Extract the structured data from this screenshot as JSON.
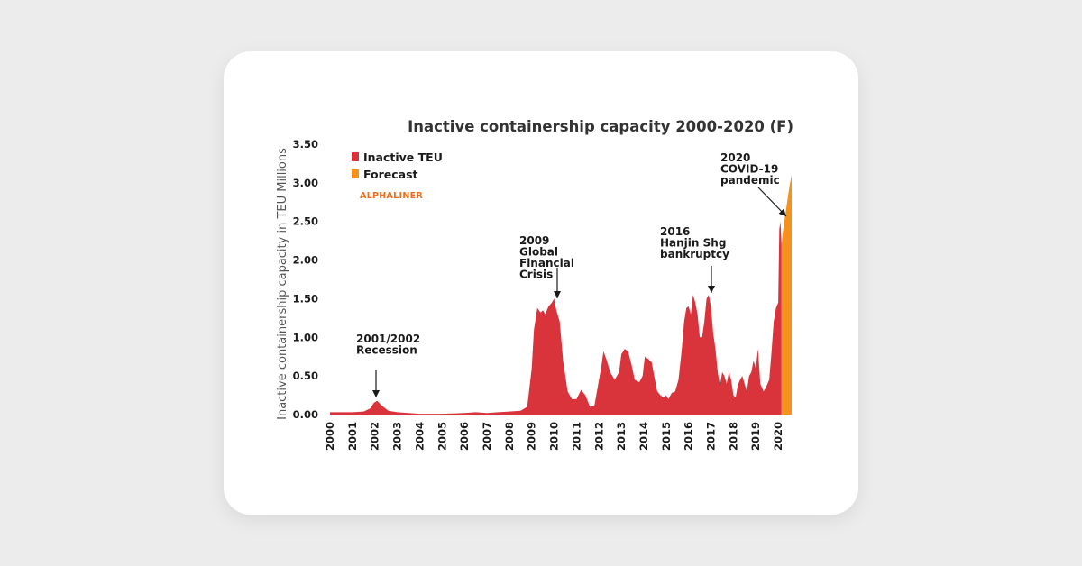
{
  "chart_data": {
    "type": "area",
    "title": "Inactive containership capacity 2000-2020 (F)",
    "xlabel": "",
    "ylabel": "Inactive containership capacity in TEU Millions",
    "xlim": [
      2000,
      2020.6
    ],
    "ylim": [
      0,
      3.5
    ],
    "yticks": [
      "0.00",
      "0.50",
      "1.00",
      "1.50",
      "2.00",
      "2.50",
      "3.00",
      "3.50"
    ],
    "xticks": [
      "2000",
      "2001",
      "2002",
      "2003",
      "2004",
      "2005",
      "2006",
      "2007",
      "2008",
      "2009",
      "2010",
      "2011",
      "2012",
      "2013",
      "2014",
      "2015",
      "2016",
      "2017",
      "2018",
      "2019",
      "2020"
    ],
    "grid": false,
    "legend_position": "top-left",
    "source": "ALPHALINER",
    "colors": {
      "Inactive TEU": "#d9343c",
      "Forecast": "#f5921e"
    },
    "series": [
      {
        "name": "Inactive TEU",
        "x": [
          2000,
          2000.5,
          2001,
          2001.5,
          2001.8,
          2001.95,
          2002.1,
          2002.3,
          2002.6,
          2003,
          2003.5,
          2004,
          2005,
          2006,
          2006.5,
          2007,
          2007.5,
          2008,
          2008.5,
          2008.8,
          2009,
          2009.1,
          2009.25,
          2009.4,
          2009.5,
          2009.6,
          2009.75,
          2009.9,
          2010,
          2010.1,
          2010.25,
          2010.4,
          2010.6,
          2010.8,
          2011,
          2011.2,
          2011.4,
          2011.6,
          2011.8,
          2012,
          2012.1,
          2012.2,
          2012.35,
          2012.5,
          2012.7,
          2012.9,
          2013,
          2013.15,
          2013.3,
          2013.45,
          2013.6,
          2013.8,
          2013.95,
          2014.05,
          2014.2,
          2014.35,
          2014.5,
          2014.6,
          2014.75,
          2014.9,
          2015,
          2015.1,
          2015.25,
          2015.4,
          2015.55,
          2015.7,
          2015.8,
          2015.9,
          2016,
          2016.1,
          2016.2,
          2016.3,
          2016.4,
          2016.5,
          2016.6,
          2016.7,
          2016.8,
          2016.9,
          2017,
          2017.1,
          2017.2,
          2017.3,
          2017.4,
          2017.5,
          2017.6,
          2017.7,
          2017.8,
          2017.9,
          2018,
          2018.1,
          2018.2,
          2018.3,
          2018.4,
          2018.5,
          2018.6,
          2018.7,
          2018.8,
          2018.9,
          2019,
          2019.1,
          2019.2,
          2019.35,
          2019.45,
          2019.6,
          2019.7,
          2019.8,
          2019.9,
          2020,
          2020.05,
          2020.1,
          2020.15
        ],
        "values": [
          0.03,
          0.03,
          0.03,
          0.04,
          0.08,
          0.15,
          0.18,
          0.12,
          0.05,
          0.03,
          0.02,
          0.01,
          0.01,
          0.02,
          0.03,
          0.02,
          0.03,
          0.04,
          0.05,
          0.1,
          0.6,
          1.1,
          1.38,
          1.32,
          1.35,
          1.3,
          1.4,
          1.45,
          1.5,
          1.35,
          1.2,
          0.7,
          0.3,
          0.2,
          0.2,
          0.32,
          0.25,
          0.1,
          0.12,
          0.45,
          0.6,
          0.82,
          0.7,
          0.55,
          0.45,
          0.55,
          0.78,
          0.85,
          0.82,
          0.65,
          0.45,
          0.42,
          0.5,
          0.75,
          0.72,
          0.68,
          0.45,
          0.3,
          0.25,
          0.22,
          0.25,
          0.2,
          0.28,
          0.3,
          0.45,
          0.85,
          1.2,
          1.38,
          1.4,
          1.3,
          1.55,
          1.45,
          1.3,
          1.0,
          1.0,
          1.2,
          1.5,
          1.55,
          1.4,
          1.05,
          0.85,
          0.55,
          0.38,
          0.55,
          0.5,
          0.4,
          0.55,
          0.45,
          0.25,
          0.22,
          0.38,
          0.45,
          0.5,
          0.4,
          0.3,
          0.5,
          0.55,
          0.7,
          0.6,
          0.85,
          0.4,
          0.3,
          0.35,
          0.45,
          0.8,
          1.2,
          1.38,
          1.45,
          2.4,
          2.5,
          2.2
        ]
      },
      {
        "name": "Forecast",
        "x": [
          2020.15,
          2020.2,
          2020.3,
          2020.4,
          2020.5,
          2020.6
        ],
        "values": [
          2.2,
          2.35,
          2.55,
          2.75,
          2.95,
          3.1
        ]
      }
    ],
    "annotations": [
      {
        "lines": [
          "2001/2002",
          "Recession"
        ],
        "x": 2002,
        "y": 0.17
      },
      {
        "lines": [
          "2009",
          "Global",
          "Financial",
          "Crisis"
        ],
        "x": 2010,
        "y": 1.5
      },
      {
        "lines": [
          "2016",
          "Hanjin Shg",
          "bankruptcy"
        ],
        "x": 2016.85,
        "y": 1.55
      },
      {
        "lines": [
          "2020",
          "COVID-19",
          "pandemic"
        ],
        "x": 2020.05,
        "y": 2.55
      }
    ]
  }
}
